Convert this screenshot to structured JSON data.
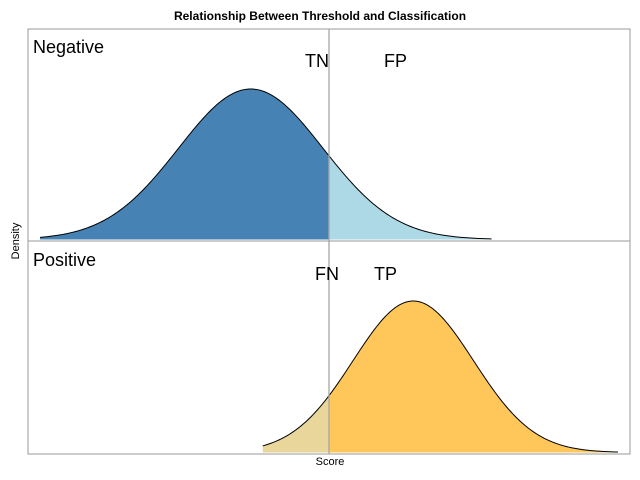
{
  "chart_data": {
    "type": "area",
    "title": "Relationship Between Threshold and Classification",
    "xlabel": "Score",
    "ylabel": "Density",
    "xlim": [
      0,
      1
    ],
    "threshold": 0.5,
    "grid": false,
    "panels": [
      {
        "name": "Negative",
        "distribution": {
          "mean": 0.37,
          "sd": 0.12,
          "x_min": 0.02,
          "x_max": 0.77
        },
        "regions": [
          {
            "label": "TN",
            "side": "below-threshold",
            "color": "#4682b4"
          },
          {
            "label": "FP",
            "side": "above-threshold",
            "color": "#add8e6"
          }
        ]
      },
      {
        "name": "Positive",
        "distribution": {
          "mean": 0.64,
          "sd": 0.1,
          "x_min": 0.39,
          "x_max": 0.98
        },
        "regions": [
          {
            "label": "FN",
            "side": "below-threshold",
            "color": "#e8d69b"
          },
          {
            "label": "TP",
            "side": "above-threshold",
            "color": "#ffc65a"
          }
        ]
      }
    ]
  }
}
